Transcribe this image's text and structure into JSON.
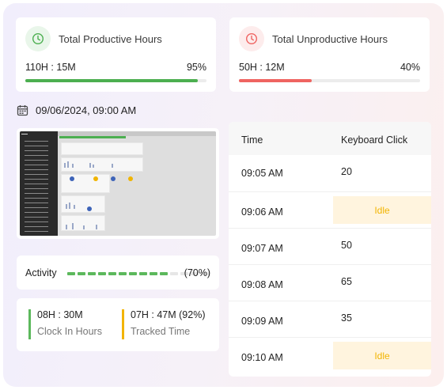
{
  "productive": {
    "title": "Total Productive Hours",
    "value": "110H : 15M",
    "percent_label": "95%",
    "percent": 95,
    "icon": "clock-icon",
    "color": "#4caf50",
    "icon_bg": "#e9f6ea"
  },
  "unproductive": {
    "title": "Total Unproductive Hours",
    "value": "50H : 12M",
    "percent_label": "40%",
    "percent": 40,
    "icon": "clock-icon",
    "color": "#ef6461",
    "icon_bg": "#fdecec"
  },
  "session": {
    "date_time": "09/06/2024, 09:00 AM",
    "icon": "calendar-icon"
  },
  "activity": {
    "label": "Activity",
    "percent_label": "(70%)",
    "segments_total": 14,
    "segments_filled": 10,
    "filled_color": "#5cb85c",
    "empty_color": "#e6e6e6"
  },
  "clock": {
    "clock_in_value": "08H : 30M",
    "clock_in_label": "Clock In Hours",
    "clock_in_color": "#5cb85c",
    "tracked_value": "07H : 47M (92%)",
    "tracked_label": "Tracked Time",
    "tracked_color": "#f2b400"
  },
  "table": {
    "headers": [
      "Time",
      "Keyboard Click"
    ],
    "rows": [
      {
        "time": "09:05 AM",
        "clicks": "20",
        "idle": false
      },
      {
        "time": "09:06 AM",
        "clicks": "Idle",
        "idle": true
      },
      {
        "time": "09:07 AM",
        "clicks": "50",
        "idle": false
      },
      {
        "time": "09:08 AM",
        "clicks": "65",
        "idle": false
      },
      {
        "time": "09:09 AM",
        "clicks": "35",
        "idle": false
      },
      {
        "time": "09:10 AM",
        "clicks": "Idle",
        "idle": true
      }
    ]
  }
}
